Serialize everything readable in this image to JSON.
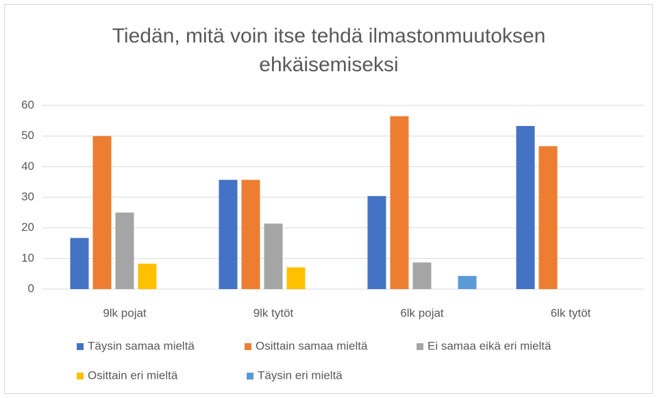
{
  "chart_data": {
    "type": "bar",
    "title": "Tiedän, mitä voin itse tehdä ilmastonmuutoksen ehkäisemiseksi",
    "categories": [
      "9lk pojat",
      "9lk tytöt",
      "6lk pojat",
      "6lk tytöt"
    ],
    "series": [
      {
        "name": "Täysin samaa mieltä",
        "color": "#4472c4",
        "values": [
          16.7,
          35.7,
          30.4,
          53.3
        ]
      },
      {
        "name": "Osittain samaa mieltä",
        "color": "#ed7d31",
        "values": [
          50,
          35.7,
          56.5,
          46.7
        ]
      },
      {
        "name": "Ei samaa eikä eri mieltä",
        "color": "#a5a5a5",
        "values": [
          25,
          21.4,
          8.7,
          0
        ]
      },
      {
        "name": "Osittain eri mieltä",
        "color": "#ffc000",
        "values": [
          8.3,
          7.1,
          0,
          0
        ]
      },
      {
        "name": "Täysin eri mieltä",
        "color": "#5b9bd5",
        "values": [
          0,
          0,
          4.3,
          0
        ]
      }
    ],
    "ylim": [
      0,
      60
    ],
    "yticks": [
      0,
      10,
      20,
      30,
      40,
      50,
      60
    ],
    "grid": true,
    "legend": "bottom"
  }
}
